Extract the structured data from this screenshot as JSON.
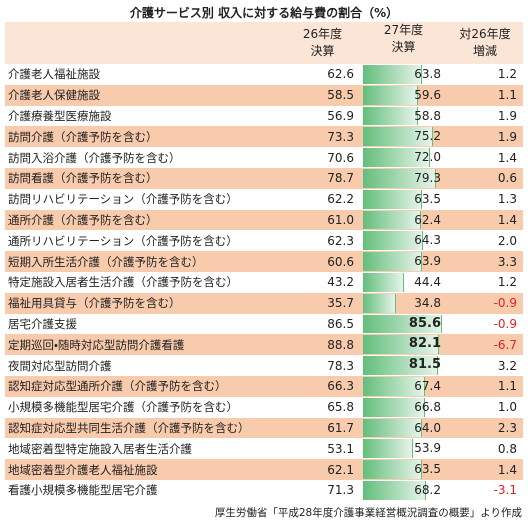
{
  "title": "介護サービス別 収入に対する給与費の割合（%）",
  "columns": [
    {
      "line1": "26年度",
      "line2": "決算"
    },
    {
      "line1": "27年度",
      "line2": "決算"
    },
    {
      "line1": "対26年度",
      "line2": "増減"
    }
  ],
  "rows": [
    {
      "name": "介護老人福祉施設",
      "fy26": "62.6",
      "fy27": "63.8",
      "change": "1.2"
    },
    {
      "name": "介護老人保健施設",
      "fy26": "58.5",
      "fy27": "59.6",
      "change": "1.1"
    },
    {
      "name": "介護療養型医療施設",
      "fy26": "56.9",
      "fy27": "58.8",
      "change": "1.9"
    },
    {
      "name": "訪問介護（介護予防を含む）",
      "fy26": "73.3",
      "fy27": "75.2",
      "change": "1.9"
    },
    {
      "name": "訪問入浴介護（介護予防を含む）",
      "fy26": "70.6",
      "fy27": "72.0",
      "change": "1.4"
    },
    {
      "name": "訪問看護（介護予防を含む）",
      "fy26": "78.7",
      "fy27": "79.3",
      "change": "0.6"
    },
    {
      "name": "訪問リハビリテーション（介護予防を含む）",
      "fy26": "62.2",
      "fy27": "63.5",
      "change": "1.3"
    },
    {
      "name": "通所介護（介護予防を含む）",
      "fy26": "61.0",
      "fy27": "62.4",
      "change": "1.4"
    },
    {
      "name": "通所リハビリテーション（介護予防を含む）",
      "fy26": "62.3",
      "fy27": "64.3",
      "change": "2.0"
    },
    {
      "name": "短期入所生活介護（介護予防を含む）",
      "fy26": "60.6",
      "fy27": "63.9",
      "change": "3.3"
    },
    {
      "name": "特定施設入居者生活介護（介護予防を含む）",
      "fy26": "43.2",
      "fy27": "44.4",
      "change": "1.2"
    },
    {
      "name": "福祉用具貸与（介護予防を含む）",
      "fy26": "35.7",
      "fy27": "34.8",
      "change": "-0.9"
    },
    {
      "name": "居宅介護支援",
      "fy26": "86.5",
      "fy27": "85.6",
      "change": "-0.9",
      "emphasis": true
    },
    {
      "name": "定期巡回・随時対応型訪問介護看護",
      "fy26": "88.8",
      "fy27": "82.1",
      "change": "-6.7",
      "emphasis": true
    },
    {
      "name": "夜間対応型訪問介護",
      "fy26": "78.3",
      "fy27": "81.5",
      "change": "3.2",
      "emphasis": true
    },
    {
      "name": "認知症対応型通所介護（介護予防を含む）",
      "fy26": "66.3",
      "fy27": "67.4",
      "change": "1.1"
    },
    {
      "name": "小規模多機能型居宅介護（介護予防を含む）",
      "fy26": "65.8",
      "fy27": "66.8",
      "change": "1.0"
    },
    {
      "name": "認知症対応型共同生活介護（介護予防を含む）",
      "fy26": "61.7",
      "fy27": "64.0",
      "change": "2.3"
    },
    {
      "name": "地域密着型特定施設入居者生活介護",
      "fy26": "53.1",
      "fy27": "53.9",
      "change": "0.8"
    },
    {
      "name": "地域密着型介護老人福祉施設",
      "fy26": "62.1",
      "fy27": "63.5",
      "change": "1.4"
    },
    {
      "name": "看護小規模多機能型居宅介護",
      "fy26": "71.3",
      "fy27": "68.2",
      "change": "-3.1"
    }
  ],
  "source": "厚生労働省「平成28年度介護事業経営概況調査の概要」より作成"
}
